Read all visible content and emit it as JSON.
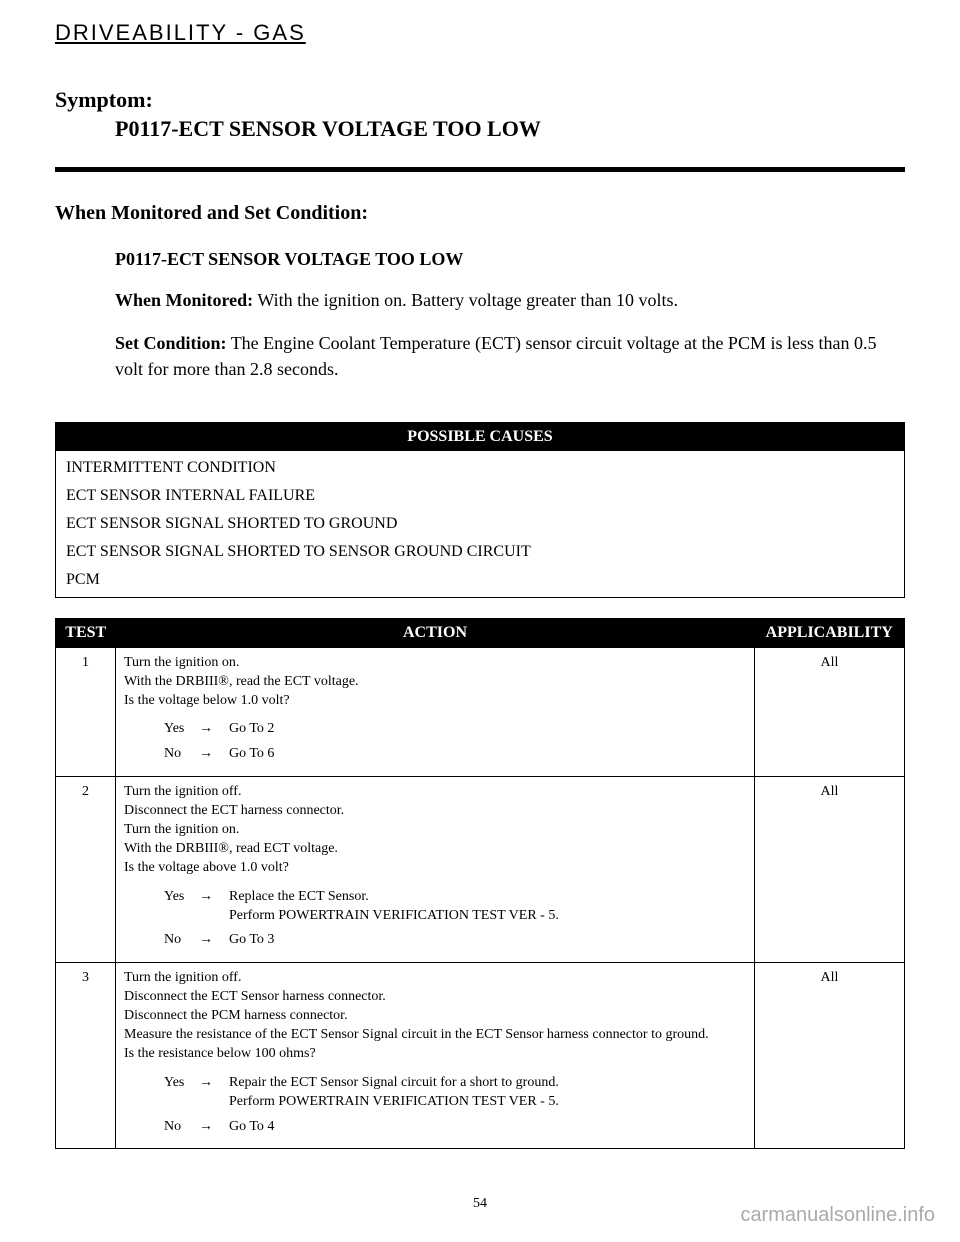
{
  "header": {
    "section_title": "DRIVEABILITY - GAS"
  },
  "symptom": {
    "label": "Symptom:",
    "code": "P0117-ECT SENSOR VOLTAGE TOO LOW"
  },
  "monitored": {
    "heading": "When Monitored and Set Condition:",
    "code_heading": "P0117-ECT SENSOR VOLTAGE TOO LOW",
    "when_label": "When Monitored:",
    "when_text": " With the ignition on. Battery voltage greater than 10 volts.",
    "set_label": "Set Condition:",
    "set_text": " The Engine Coolant Temperature (ECT) sensor circuit voltage at the PCM is less than 0.5 volt for more than 2.8 seconds."
  },
  "causes": {
    "header": "POSSIBLE CAUSES",
    "items": [
      "INTERMITTENT CONDITION",
      "ECT SENSOR INTERNAL FAILURE",
      "ECT SENSOR SIGNAL SHORTED TO GROUND",
      "ECT SENSOR SIGNAL SHORTED TO SENSOR GROUND CIRCUIT",
      "PCM"
    ]
  },
  "test_table": {
    "headers": {
      "test": "TEST",
      "action": "ACTION",
      "applic": "APPLICABILITY"
    },
    "rows": [
      {
        "num": "1",
        "action_lines": "Turn the ignition on.\nWith the DRBIII®, read the ECT voltage.\nIs the voltage below 1.0 volt?",
        "yes": "Go To 2",
        "no": "Go To 6",
        "applic": "All"
      },
      {
        "num": "2",
        "action_lines": "Turn the ignition off.\nDisconnect the ECT harness connector.\nTurn the ignition on.\nWith the DRBIII®, read ECT voltage.\nIs the voltage above 1.0 volt?",
        "yes": "Replace the ECT Sensor.\nPerform POWERTRAIN VERIFICATION TEST VER - 5.",
        "no": "Go To 3",
        "applic": "All"
      },
      {
        "num": "3",
        "action_lines": "Turn the ignition off.\nDisconnect the ECT Sensor harness connector.\nDisconnect the PCM harness connector.\nMeasure the resistance of the ECT Sensor Signal circuit in the ECT Sensor harness connector to ground.\nIs the resistance below 100 ohms?",
        "yes": "Repair the ECT Sensor Signal circuit for a short to ground.\nPerform POWERTRAIN VERIFICATION TEST VER - 5.",
        "no": "Go To 4",
        "applic": "All"
      }
    ]
  },
  "footer": {
    "page_number": "54",
    "watermark": "carmanualsonline.info"
  },
  "labels": {
    "yes": "Yes",
    "no": "No",
    "arrow": "→"
  }
}
